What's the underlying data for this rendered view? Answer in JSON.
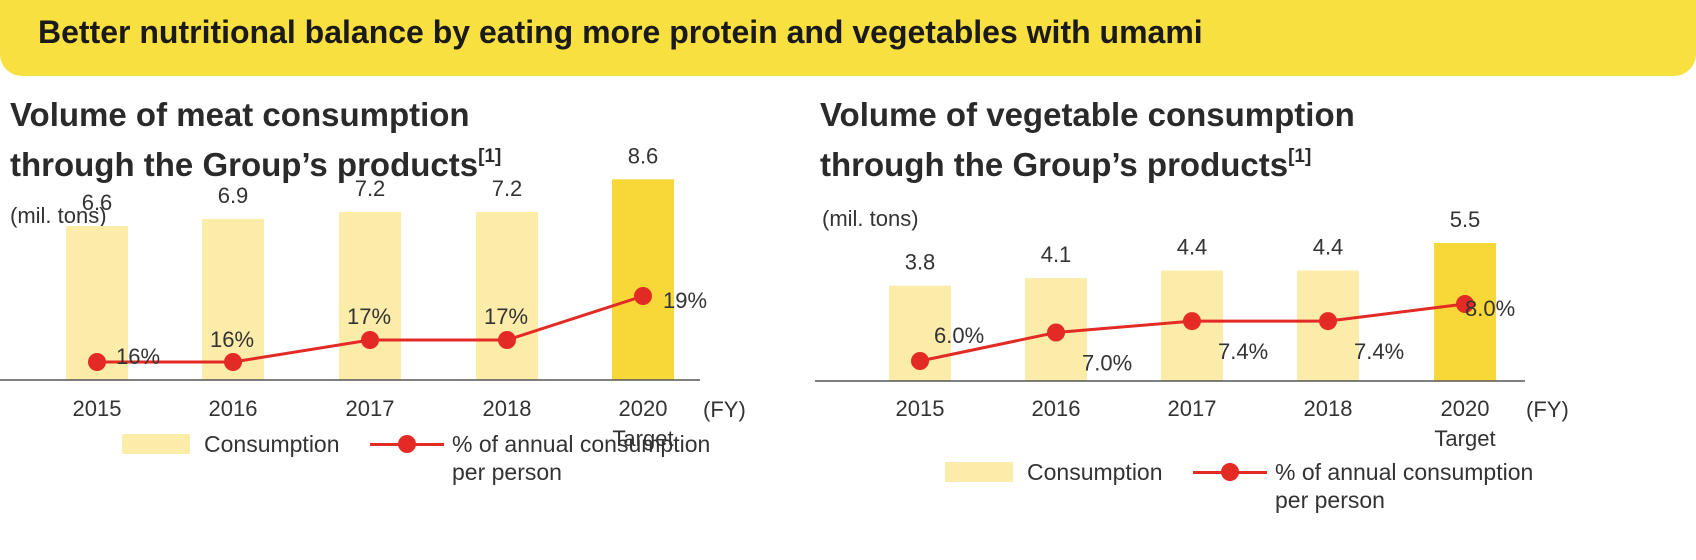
{
  "banner": {
    "title": "Better nutritional balance by eating more protein and vegetables with umami"
  },
  "colors": {
    "banner": "#f8e040",
    "bar_actual": "#fcecaa",
    "bar_target": "#f8d838",
    "line": "#e32a24"
  },
  "legend": {
    "consumption": "Consumption",
    "percent_line1": "% of annual consumption",
    "percent_line2": "per person"
  },
  "chart_data": [
    {
      "type": "bar",
      "title_line1": "Volume of meat consumption",
      "title_line2": "through the Group’s products",
      "title_note": "[1]",
      "unit": "(mil. tons)",
      "x_unit": "(FY)",
      "categories": [
        "2015",
        "2016",
        "2017",
        "2018",
        "2020"
      ],
      "category_sublabels": [
        "",
        "",
        "",
        "",
        "Target"
      ],
      "series": [
        {
          "name": "Consumption",
          "type": "bar",
          "values": [
            6.6,
            6.9,
            7.2,
            7.2,
            8.6
          ],
          "labels": [
            "6.6",
            "6.9",
            "7.2",
            "7.2",
            "8.6"
          ]
        },
        {
          "name": "% of annual consumption per person",
          "type": "line",
          "values": [
            16,
            16,
            17,
            17,
            19
          ],
          "labels": [
            "16%",
            "16%",
            "17%",
            "17%",
            "19%"
          ]
        }
      ]
    },
    {
      "type": "bar",
      "title_line1": "Volume of vegetable consumption",
      "title_line2": "through the Group’s products",
      "title_note": "[1]",
      "unit": "(mil. tons)",
      "x_unit": "(FY)",
      "categories": [
        "2015",
        "2016",
        "2017",
        "2018",
        "2020"
      ],
      "category_sublabels": [
        "",
        "",
        "",
        "",
        "Target"
      ],
      "series": [
        {
          "name": "Consumption",
          "type": "bar",
          "values": [
            3.8,
            4.1,
            4.4,
            4.4,
            5.5
          ],
          "labels": [
            "3.8",
            "4.1",
            "4.4",
            "4.4",
            "5.5"
          ]
        },
        {
          "name": "% of annual consumption per person",
          "type": "line",
          "values": [
            6.0,
            7.0,
            7.4,
            7.4,
            8.0
          ],
          "labels": [
            "6.0%",
            "7.0%",
            "7.4%",
            "7.4%",
            "8.0%"
          ]
        }
      ]
    }
  ]
}
